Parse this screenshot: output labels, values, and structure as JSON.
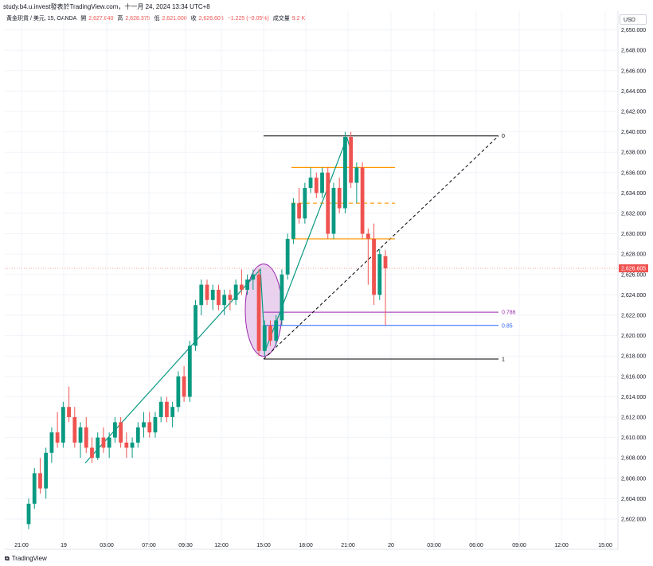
{
  "header": {
    "source_line": "study.b4.u.invest發表於TradingView.com，十一月 24, 2024 13:34 UTC+8"
  },
  "legend": {
    "symbol": "黃金現貨 / 美元, 15, OANDA",
    "open_label": "開",
    "open": "2,627.840",
    "high_label": "高",
    "high": "2,628.375",
    "low_label": "低",
    "low": "2,621.000",
    "close_label": "收",
    "close": "2,626.605",
    "change": "−1.225 (−0.05%)",
    "volume_label": "成交量",
    "volume": "9.2 K"
  },
  "currency": "USD",
  "footer": {
    "brand": "TradingView"
  },
  "colors": {
    "up": "#089981",
    "down": "#ef5350",
    "fib": "#000000",
    "orange": "#ff9800",
    "purple": "#9c27b0",
    "blue": "#2962ff",
    "ellipse_fill": "#e1bee7",
    "trend": "#089981"
  },
  "chart_data": {
    "type": "candlestick",
    "title": "",
    "xlabel": "",
    "ylabel": "",
    "ylim": [
      2600.5,
      2651.5
    ],
    "y_ticks": [
      2602,
      2604,
      2606,
      2608,
      2610,
      2612,
      2614,
      2616,
      2618,
      2620,
      2622,
      2624,
      2626,
      2628,
      2630,
      2632,
      2634,
      2636,
      2638,
      2640,
      2642,
      2644,
      2646,
      2648,
      2650
    ],
    "x_ticks": [
      "21:00",
      "19",
      "03:00",
      "07:00",
      "09:30",
      "12:00",
      "15:00",
      "18:00",
      "21:00",
      "20",
      "03:00",
      "06:00",
      "09:00",
      "12:00",
      "15:00"
    ],
    "current_price": "2,626.605",
    "candles": [
      [
        2601.5,
        2604.0,
        2601.0,
        2603.5
      ],
      [
        2603.5,
        2607.0,
        2603.0,
        2606.5
      ],
      [
        2606.5,
        2608.0,
        2604.5,
        2605.0
      ],
      [
        2605.0,
        2609.0,
        2604.0,
        2608.5
      ],
      [
        2608.5,
        2611.0,
        2607.5,
        2610.5
      ],
      [
        2610.5,
        2612.5,
        2609.0,
        2609.5
      ],
      [
        2609.5,
        2613.5,
        2609.0,
        2613.0
      ],
      [
        2613.0,
        2615.0,
        2611.5,
        2612.0
      ],
      [
        2612.0,
        2613.0,
        2609.0,
        2609.5
      ],
      [
        2609.5,
        2611.5,
        2608.0,
        2611.0
      ],
      [
        2611.0,
        2612.0,
        2608.5,
        2609.0
      ],
      [
        2609.0,
        2610.0,
        2607.5,
        2608.0
      ],
      [
        2608.0,
        2610.5,
        2607.8,
        2610.0
      ],
      [
        2610.0,
        2611.0,
        2608.5,
        2609.0
      ],
      [
        2609.0,
        2610.5,
        2608.0,
        2610.0
      ],
      [
        2610.0,
        2612.0,
        2609.5,
        2611.5
      ],
      [
        2611.5,
        2612.0,
        2609.0,
        2609.5
      ],
      [
        2609.5,
        2610.5,
        2608.0,
        2609.0
      ],
      [
        2609.0,
        2610.0,
        2608.0,
        2609.5
      ],
      [
        2609.5,
        2611.5,
        2609.0,
        2611.0
      ],
      [
        2611.0,
        2612.5,
        2610.0,
        2611.5
      ],
      [
        2611.5,
        2612.5,
        2610.0,
        2610.5
      ],
      [
        2610.5,
        2612.5,
        2610.0,
        2612.0
      ],
      [
        2612.0,
        2614.0,
        2611.5,
        2613.5
      ],
      [
        2613.5,
        2614.0,
        2611.5,
        2612.0
      ],
      [
        2612.0,
        2613.5,
        2611.0,
        2613.0
      ],
      [
        2613.0,
        2616.5,
        2612.5,
        2616.0
      ],
      [
        2616.0,
        2617.0,
        2613.5,
        2614.0
      ],
      [
        2614.0,
        2619.5,
        2613.5,
        2619.0
      ],
      [
        2619.0,
        2623.5,
        2618.5,
        2623.0
      ],
      [
        2623.0,
        2625.5,
        2622.0,
        2625.0
      ],
      [
        2625.0,
        2625.5,
        2623.0,
        2623.5
      ],
      [
        2623.5,
        2625.0,
        2622.5,
        2624.5
      ],
      [
        2624.5,
        2625.0,
        2622.5,
        2623.0
      ],
      [
        2623.0,
        2624.5,
        2622.0,
        2624.0
      ],
      [
        2624.0,
        2624.5,
        2622.5,
        2623.5
      ],
      [
        2623.5,
        2625.5,
        2623.0,
        2625.0
      ],
      [
        2625.0,
        2626.5,
        2624.0,
        2624.5
      ],
      [
        2624.5,
        2626.0,
        2624.0,
        2625.5
      ],
      [
        2625.5,
        2626.5,
        2624.5,
        2626.0
      ],
      [
        2626.0,
        2626.5,
        2618.0,
        2618.5
      ],
      [
        2618.5,
        2621.5,
        2618.0,
        2621.0
      ],
      [
        2621.0,
        2621.5,
        2619.0,
        2619.5
      ],
      [
        2619.5,
        2622.0,
        2619.0,
        2621.5
      ],
      [
        2621.5,
        2626.5,
        2621.0,
        2626.0
      ],
      [
        2626.0,
        2630.0,
        2625.5,
        2629.5
      ],
      [
        2629.5,
        2633.5,
        2629.0,
        2633.0
      ],
      [
        2633.0,
        2634.5,
        2631.0,
        2631.5
      ],
      [
        2631.5,
        2635.0,
        2631.0,
        2634.5
      ],
      [
        2634.5,
        2636.5,
        2634.0,
        2635.5
      ],
      [
        2635.5,
        2636.0,
        2633.5,
        2634.0
      ],
      [
        2634.0,
        2636.5,
        2633.5,
        2636.0
      ],
      [
        2636.0,
        2636.5,
        2629.5,
        2630.0
      ],
      [
        2630.0,
        2635.0,
        2629.5,
        2634.5
      ],
      [
        2634.5,
        2635.5,
        2632.0,
        2632.5
      ],
      [
        2632.5,
        2640.0,
        2632.0,
        2639.5
      ],
      [
        2639.5,
        2640.0,
        2634.5,
        2635.0
      ],
      [
        2635.0,
        2637.0,
        2633.0,
        2636.5
      ],
      [
        2636.5,
        2637.0,
        2629.5,
        2630.0
      ],
      [
        2630.0,
        2630.5,
        2625.0,
        2629.5
      ],
      [
        2629.5,
        2631.0,
        2623.0,
        2624.0
      ],
      [
        2624.0,
        2628.5,
        2623.5,
        2628.0
      ],
      [
        2627.8,
        2628.4,
        2621.0,
        2626.6
      ]
    ],
    "annotations": {
      "fib_levels": [
        {
          "label": "0",
          "price": 2639.6
        },
        {
          "label": "0.786",
          "price": 2622.3
        },
        {
          "label": "0.85",
          "price": 2621.0
        },
        {
          "label": "1",
          "price": 2617.7
        }
      ],
      "orange_levels": [
        2636.5,
        2633.0,
        2629.5
      ]
    }
  }
}
